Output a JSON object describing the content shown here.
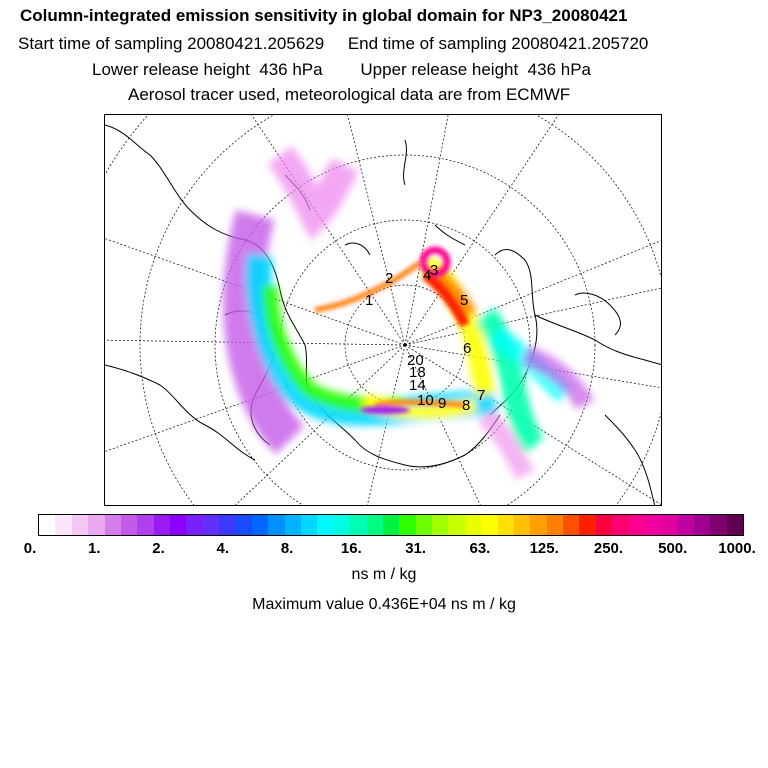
{
  "header": {
    "title": "Column-integrated emission sensitivity in global domain for NP3_20080421",
    "line2": "Start time of sampling 20080421.205629     End time of sampling 20080421.205720",
    "line3": "Lower release height  436 hPa        Upper release height  436 hPa",
    "line4": "Aerosol tracer used, meteorological data are from ECMWF"
  },
  "map": {
    "projection": "polar stereographic (North Pole)",
    "trajectory_labels": [
      "1",
      "2",
      "3",
      "4",
      "5",
      "6",
      "7",
      "8",
      "9",
      "10",
      "14",
      "18",
      "20"
    ],
    "plume_colors": [
      "#ee82ee",
      "#a020f0",
      "#00ffff",
      "#00ff66",
      "#ffff00",
      "#ff8c00",
      "#ff0000"
    ]
  },
  "colorbar": {
    "tick_labels": [
      "0.",
      "1.",
      "2.",
      "4.",
      "8.",
      "16.",
      "31.",
      "63.",
      "125.",
      "250.",
      "500.",
      "1000."
    ],
    "colors": [
      "#ffffff",
      "#fbe6fb",
      "#f3c8f5",
      "#eaa8f0",
      "#d47de8",
      "#c45ae8",
      "#b040ee",
      "#9a1af2",
      "#8c00ff",
      "#7a20ff",
      "#6030ff",
      "#3a3aff",
      "#1a4cff",
      "#0068ff",
      "#0090ff",
      "#00b4ff",
      "#00d8ff",
      "#00f8ff",
      "#00ffe0",
      "#00ffb0",
      "#00ff80",
      "#00f040",
      "#30ff00",
      "#70ff00",
      "#a0ff00",
      "#c8ff00",
      "#e8ff00",
      "#ffff00",
      "#ffe000",
      "#ffc000",
      "#ffa000",
      "#ff8000",
      "#ff5000",
      "#ff2000",
      "#ff0040",
      "#ff0070",
      "#ff0090",
      "#f000a0",
      "#e000a0",
      "#c000a0",
      "#a00090",
      "#800070",
      "#600050"
    ],
    "unit": "ns m / kg"
  },
  "footer": {
    "max_value": "Maximum value  0.436E+04 ns m / kg"
  }
}
